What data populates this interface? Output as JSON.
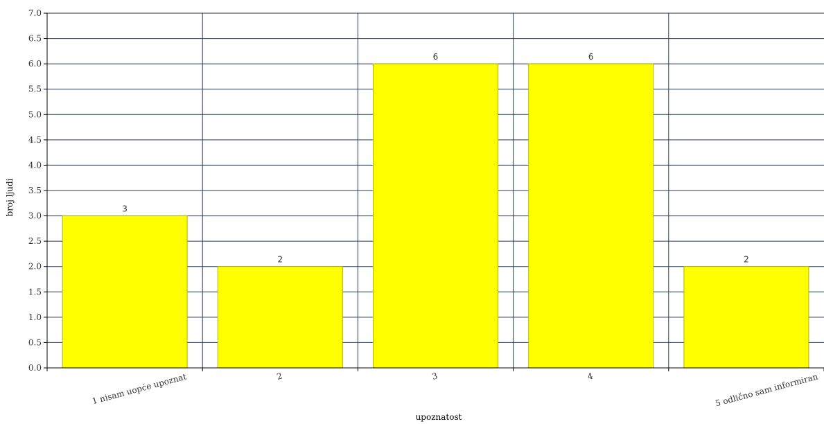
{
  "chart_data": {
    "type": "bar",
    "categories": [
      "1 nisam uopće upoznat",
      "2",
      "3",
      "4",
      "5 odlično sam informiran"
    ],
    "values": [
      3,
      2,
      6,
      6,
      2
    ],
    "data_labels": [
      "3",
      "2",
      "6",
      "6",
      "2"
    ],
    "title": "",
    "xlabel": "upoznatost",
    "ylabel": "broj ljudi",
    "ylim": [
      0,
      7
    ],
    "yticks": [
      0.0,
      0.5,
      1.0,
      1.5,
      2.0,
      2.5,
      3.0,
      3.5,
      4.0,
      4.5,
      5.0,
      5.5,
      6.0,
      6.5,
      7.0
    ],
    "ytick_labels": [
      "0.0",
      "0.5",
      "1.0",
      "1.5",
      "2.0",
      "2.5",
      "3.0",
      "3.5",
      "4.0",
      "4.5",
      "5.0",
      "5.5",
      "6.0",
      "6.5",
      "7.0"
    ],
    "grid": true,
    "legend": "none",
    "colors": {
      "bar_fill": "#ffff00",
      "bar_stroke": "#b3b300",
      "grid": "#1f3b5c",
      "axis": "#000000",
      "text": "#333333"
    }
  }
}
